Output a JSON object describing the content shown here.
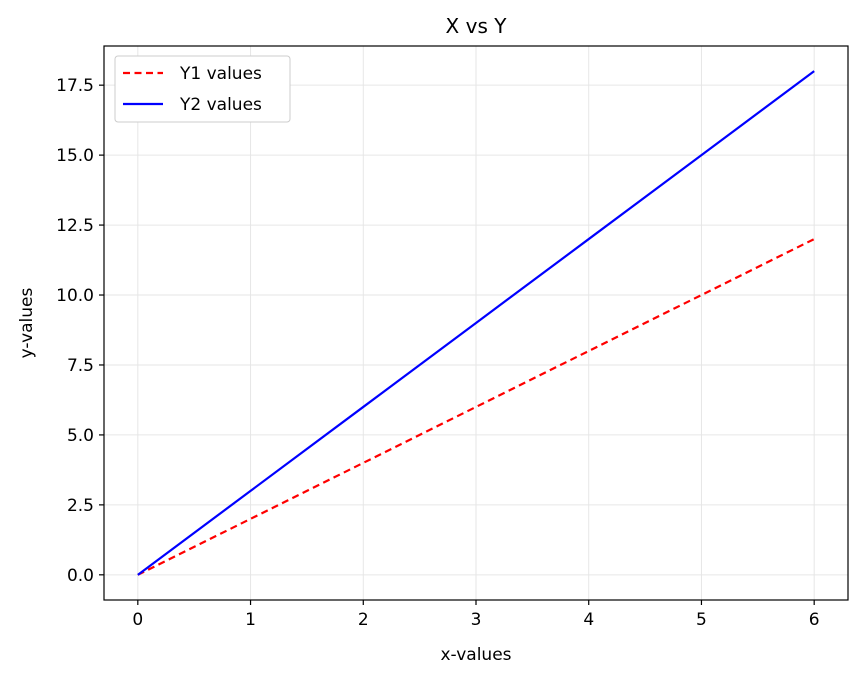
{
  "chart_data": {
    "type": "line",
    "title": "X vs Y",
    "xlabel": "x-values",
    "ylabel": "y-values",
    "xlim": [
      -0.3,
      6.3
    ],
    "ylim": [
      -0.9,
      18.9
    ],
    "xticks": [
      0,
      1,
      2,
      3,
      4,
      5,
      6
    ],
    "xtick_labels": [
      "0",
      "1",
      "2",
      "3",
      "4",
      "5",
      "6"
    ],
    "yticks": [
      0,
      2.5,
      5,
      7.5,
      10,
      12.5,
      15,
      17.5
    ],
    "ytick_labels": [
      "0.0",
      "2.5",
      "5.0",
      "7.5",
      "10.0",
      "12.5",
      "15.0",
      "17.5"
    ],
    "grid": true,
    "legend_position": "top-left",
    "x": [
      0,
      1,
      2,
      3,
      4,
      5,
      6
    ],
    "series": [
      {
        "name": "Y1 values",
        "values": [
          0,
          2,
          4,
          6,
          8,
          10,
          12
        ],
        "color": "#ff0000",
        "style": "dashed"
      },
      {
        "name": "Y2 values",
        "values": [
          0,
          3,
          6,
          9,
          12,
          15,
          18
        ],
        "color": "#0000ff",
        "style": "solid"
      }
    ]
  }
}
